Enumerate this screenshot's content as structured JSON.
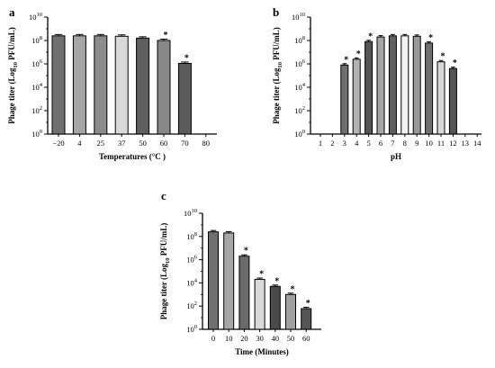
{
  "chart_data": [
    {
      "type": "bar",
      "panel_label": "a",
      "categories": [
        "−20",
        "4",
        "25",
        "37",
        "50",
        "60",
        "70",
        "80"
      ],
      "values": [
        250000000.0,
        250000000.0,
        250000000.0,
        230000000.0,
        160000000.0,
        100000000.0,
        1100000.0,
        null
      ],
      "significant": [
        false,
        false,
        false,
        false,
        false,
        true,
        true,
        false
      ],
      "bar_colors": [
        "#707070",
        "#a6a6a6",
        "#8c8c8c",
        "#d9d9d9",
        "#5f5f5f",
        "#888888",
        "#5a5a5a",
        null
      ],
      "xlabel": "Temperatures (°C )",
      "ylabel": "Phage titer (Log10 PFU/mL)",
      "ylabel_prefix": "Phage titer (Log",
      "ylabel_sub": "10",
      "ylabel_suffix": " PFU/mL)",
      "y_scale": "log10",
      "ylim": [
        1,
        10000000000.0
      ],
      "y_ticks": [
        {
          "base": "10",
          "exp": "10"
        },
        {
          "base": "10",
          "exp": "8"
        },
        {
          "base": "10",
          "exp": "6"
        },
        {
          "base": "10",
          "exp": "4"
        },
        {
          "base": "10",
          "exp": "2"
        },
        {
          "base": "10",
          "exp": "0"
        }
      ],
      "significance_marker": "*",
      "grid": false,
      "legend": "none"
    },
    {
      "type": "bar",
      "panel_label": "b",
      "categories": [
        "1",
        "2",
        "3",
        "4",
        "5",
        "6",
        "7",
        "8",
        "9",
        "10",
        "11",
        "12",
        "13",
        "14"
      ],
      "values": [
        null,
        null,
        800000.0,
        2500000.0,
        80000000.0,
        200000000.0,
        250000000.0,
        250000000.0,
        230000000.0,
        60000000.0,
        1500000.0,
        400000.0,
        null,
        null
      ],
      "significant": [
        false,
        false,
        true,
        true,
        true,
        false,
        false,
        false,
        false,
        true,
        true,
        true,
        false,
        false
      ],
      "bar_colors": [
        null,
        null,
        "#6f6f6f",
        "#b3b3b3",
        "#555555",
        "#a6a6a6",
        "#5f5f5f",
        "#f2f2f2",
        "#999999",
        "#707070",
        "#d9d9d9",
        "#555555",
        null,
        null
      ],
      "xlabel": "pH",
      "ylabel": "Phage titer (Log10 PFU/mL)",
      "ylabel_prefix": "Phage titer (Log",
      "ylabel_sub": "10",
      "ylabel_suffix": " PFU/mL)",
      "y_scale": "log10",
      "ylim": [
        1,
        10000000000.0
      ],
      "y_ticks": [
        {
          "base": "10",
          "exp": "10"
        },
        {
          "base": "10",
          "exp": "8"
        },
        {
          "base": "10",
          "exp": "6"
        },
        {
          "base": "10",
          "exp": "4"
        },
        {
          "base": "10",
          "exp": "2"
        },
        {
          "base": "10",
          "exp": "0"
        }
      ],
      "significance_marker": "*",
      "grid": false,
      "legend": "none"
    },
    {
      "type": "bar",
      "panel_label": "c",
      "categories": [
        "0",
        "10",
        "20",
        "30",
        "40",
        "50",
        "60"
      ],
      "values": [
        250000000.0,
        200000000.0,
        2000000.0,
        20000.0,
        5000.0,
        1000.0,
        60.0
      ],
      "significant": [
        false,
        false,
        true,
        true,
        true,
        true,
        true
      ],
      "bar_colors": [
        "#6f6f6f",
        "#a6a6a6",
        "#6a6a6a",
        "#d9d9d9",
        "#4a4a4a",
        "#a0a0a0",
        "#555555"
      ],
      "xlabel": "Time (Minutes)",
      "ylabel": "Phage titer (Log10 PFU/mL)",
      "ylabel_prefix": "Phage titer (Log",
      "ylabel_sub": "10",
      "ylabel_suffix": " PFU/mL)",
      "y_scale": "log10",
      "ylim": [
        1,
        10000000000.0
      ],
      "y_ticks": [
        {
          "base": "10",
          "exp": "10"
        },
        {
          "base": "10",
          "exp": "8"
        },
        {
          "base": "10",
          "exp": "6"
        },
        {
          "base": "10",
          "exp": "4"
        },
        {
          "base": "10",
          "exp": "2"
        },
        {
          "base": "10",
          "exp": "0"
        }
      ],
      "significance_marker": "*",
      "grid": false,
      "legend": "none"
    }
  ]
}
